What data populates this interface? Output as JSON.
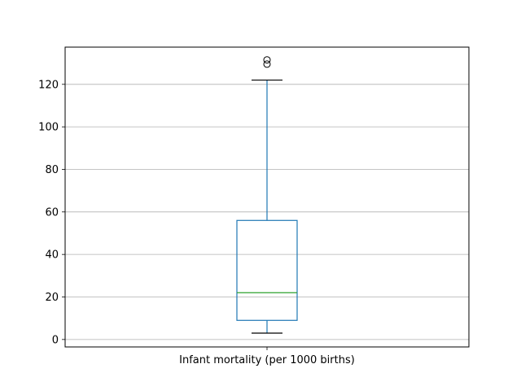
{
  "chart_data": {
    "type": "box",
    "categories": [
      "Infant mortality (per 1000 births)"
    ],
    "boxes": [
      {
        "name": "Infant mortality (per 1000 births)",
        "whisker_low": 3,
        "q1": 9,
        "median": 22,
        "q3": 56,
        "whisker_high": 122,
        "fliers": [
          129.5,
          131.5
        ]
      }
    ],
    "ylim": [
      -3.5,
      137.5
    ],
    "yticks": [
      0,
      20,
      40,
      60,
      80,
      100,
      120
    ],
    "grid_y": true,
    "colors": {
      "box": "#1f77b4",
      "median": "#2ca02c",
      "whisker_cap": "#000000",
      "grid": "#b0b0b0",
      "axes": "#000000",
      "flier": "#000000"
    }
  }
}
